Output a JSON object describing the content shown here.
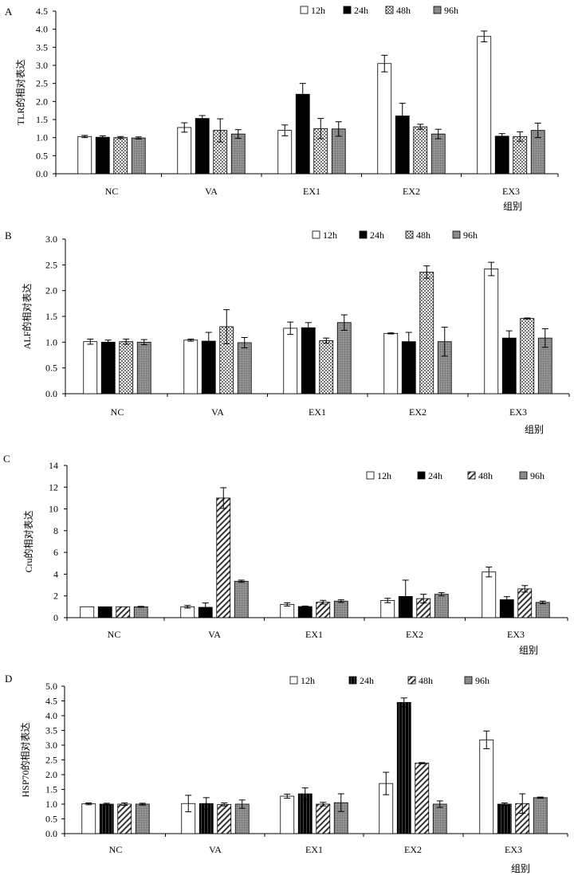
{
  "legend": [
    "12h",
    "24h",
    "48h",
    "96h"
  ],
  "chart_data": [
    {
      "type": "bar",
      "panel_label": "A",
      "ylabel": "TLR的相对表达",
      "xlabel": "组别",
      "categories": [
        "NC",
        "VA",
        "EX1",
        "EX2",
        "EX3"
      ],
      "ylim": [
        0,
        4.5
      ],
      "ytick_step": 0.5,
      "ytick_decimals": 1,
      "series": [
        {
          "name": "12h",
          "values": [
            1.03,
            1.28,
            1.2,
            3.05,
            3.8
          ],
          "errors": [
            0.03,
            0.13,
            0.15,
            0.23,
            0.15
          ]
        },
        {
          "name": "24h",
          "values": [
            1.01,
            1.53,
            2.2,
            1.6,
            1.04
          ],
          "errors": [
            0.04,
            0.08,
            0.3,
            0.35,
            0.07
          ]
        },
        {
          "name": "48h",
          "values": [
            1.0,
            1.2,
            1.25,
            1.3,
            1.03
          ],
          "errors": [
            0.03,
            0.32,
            0.28,
            0.07,
            0.13
          ]
        },
        {
          "name": "96h",
          "values": [
            0.99,
            1.1,
            1.24,
            1.1,
            1.2
          ],
          "errors": [
            0.03,
            0.12,
            0.2,
            0.13,
            0.2
          ]
        }
      ]
    },
    {
      "type": "bar",
      "panel_label": "B",
      "ylabel": "ALF的相对表达",
      "xlabel": "组别",
      "categories": [
        "NC",
        "VA",
        "EX1",
        "EX2",
        "EX3"
      ],
      "ylim": [
        0,
        3.0
      ],
      "ytick_step": 0.5,
      "ytick_decimals": 1,
      "series": [
        {
          "name": "12h",
          "values": [
            1.01,
            1.04,
            1.27,
            1.17,
            2.42
          ],
          "errors": [
            0.05,
            0.02,
            0.12,
            0.01,
            0.13
          ]
        },
        {
          "name": "24h",
          "values": [
            1.0,
            1.02,
            1.28,
            1.01,
            1.08
          ],
          "errors": [
            0.04,
            0.17,
            0.1,
            0.18,
            0.14
          ]
        },
        {
          "name": "48h",
          "values": [
            1.01,
            1.3,
            1.03,
            2.36,
            1.46
          ],
          "errors": [
            0.05,
            0.33,
            0.05,
            0.12,
            0.01
          ]
        },
        {
          "name": "96h",
          "values": [
            1.0,
            0.99,
            1.38,
            1.01,
            1.08
          ],
          "errors": [
            0.05,
            0.1,
            0.15,
            0.28,
            0.18
          ]
        }
      ]
    },
    {
      "type": "bar",
      "panel_label": "C",
      "ylabel": "Cru的相对表达",
      "xlabel": "组别",
      "categories": [
        "NC",
        "VA",
        "EX1",
        "EX2",
        "EX3"
      ],
      "ylim": [
        0,
        14
      ],
      "ytick_step": 2,
      "ytick_decimals": 0,
      "series": [
        {
          "name": "12h",
          "values": [
            1.0,
            1.0,
            1.22,
            1.58,
            4.2
          ],
          "errors": [
            0.0,
            0.12,
            0.15,
            0.2,
            0.45
          ]
        },
        {
          "name": "24h",
          "values": [
            1.0,
            0.95,
            1.02,
            1.95,
            1.65
          ],
          "errors": [
            0.0,
            0.4,
            0.05,
            1.5,
            0.28
          ]
        },
        {
          "name": "48h",
          "values": [
            1.0,
            11.0,
            1.42,
            1.75,
            2.65
          ],
          "errors": [
            0.0,
            0.95,
            0.17,
            0.4,
            0.3
          ]
        },
        {
          "name": "96h",
          "values": [
            1.0,
            3.35,
            1.52,
            2.15,
            1.4
          ],
          "errors": [
            0.04,
            0.1,
            0.12,
            0.15,
            0.12
          ]
        }
      ]
    },
    {
      "type": "bar",
      "panel_label": "D",
      "ylabel": "HSP70的相对表达",
      "xlabel": "组别",
      "categories": [
        "NC",
        "VA",
        "EX1",
        "EX2",
        "EX3"
      ],
      "ylim": [
        0,
        5.0
      ],
      "ytick_step": 0.5,
      "ytick_decimals": 1,
      "series": [
        {
          "name": "12h",
          "values": [
            1.01,
            1.02,
            1.27,
            1.7,
            3.18
          ],
          "errors": [
            0.03,
            0.28,
            0.07,
            0.38,
            0.3
          ]
        },
        {
          "name": "24h",
          "values": [
            1.0,
            1.02,
            1.35,
            4.45,
            1.0
          ],
          "errors": [
            0.03,
            0.2,
            0.2,
            0.15,
            0.04
          ]
        },
        {
          "name": "48h",
          "values": [
            1.0,
            0.99,
            1.0,
            2.39,
            1.02
          ],
          "errors": [
            0.04,
            0.05,
            0.06,
            0.02,
            0.33
          ]
        },
        {
          "name": "96h",
          "values": [
            1.0,
            1.0,
            1.05,
            1.0,
            1.22
          ],
          "errors": [
            0.03,
            0.14,
            0.3,
            0.11,
            0.02
          ]
        }
      ]
    }
  ]
}
